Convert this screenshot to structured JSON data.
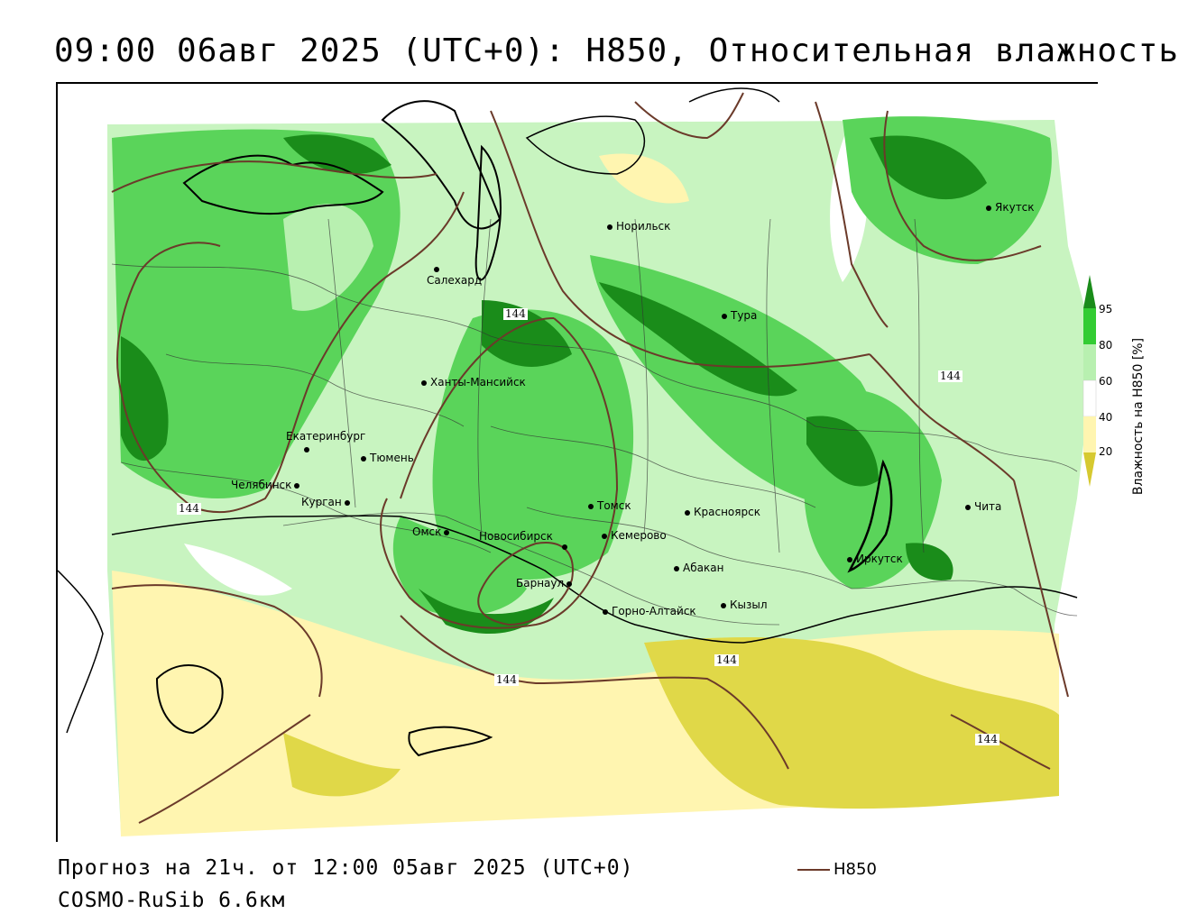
{
  "title": "09:00 06авг 2025 (UTC+0): H850, Относительная влажность",
  "footer": {
    "forecast": "Прогноз на 21ч. от 12:00 05авг 2025 (UTC+0)",
    "model": "COSMO-RuSib 6.6км",
    "isoline_legend": "H850"
  },
  "legend": {
    "title": "Влажность на H850 [%]",
    "ticks": [
      "95",
      "80",
      "60",
      "40",
      "20"
    ],
    "colors": {
      "c95": "#1a8c1a",
      "c80": "#33cc33",
      "c60": "#b8f0b0",
      "c40": "#ffffff",
      "c20": "#fff5b0",
      "c0": "#d6c930"
    }
  },
  "isolines": {
    "labels": [
      "144",
      "144",
      "144",
      "144",
      "144",
      "144"
    ],
    "color": "#6b3a2a"
  },
  "cities": [
    {
      "name": "Якутск"
    },
    {
      "name": "Норильск"
    },
    {
      "name": "Салехард"
    },
    {
      "name": "Тура"
    },
    {
      "name": "Ханты-Мансийск"
    },
    {
      "name": "Екатеринбург"
    },
    {
      "name": "Тюмень"
    },
    {
      "name": "Челябинск"
    },
    {
      "name": "Курган"
    },
    {
      "name": "Омск"
    },
    {
      "name": "Новосибирск"
    },
    {
      "name": "Томск"
    },
    {
      "name": "Кемерово"
    },
    {
      "name": "Красноярск"
    },
    {
      "name": "Барнаул"
    },
    {
      "name": "Абакан"
    },
    {
      "name": "Горно-Алтайск"
    },
    {
      "name": "Кызыл"
    },
    {
      "name": "Иркутск"
    },
    {
      "name": "Чита"
    }
  ]
}
